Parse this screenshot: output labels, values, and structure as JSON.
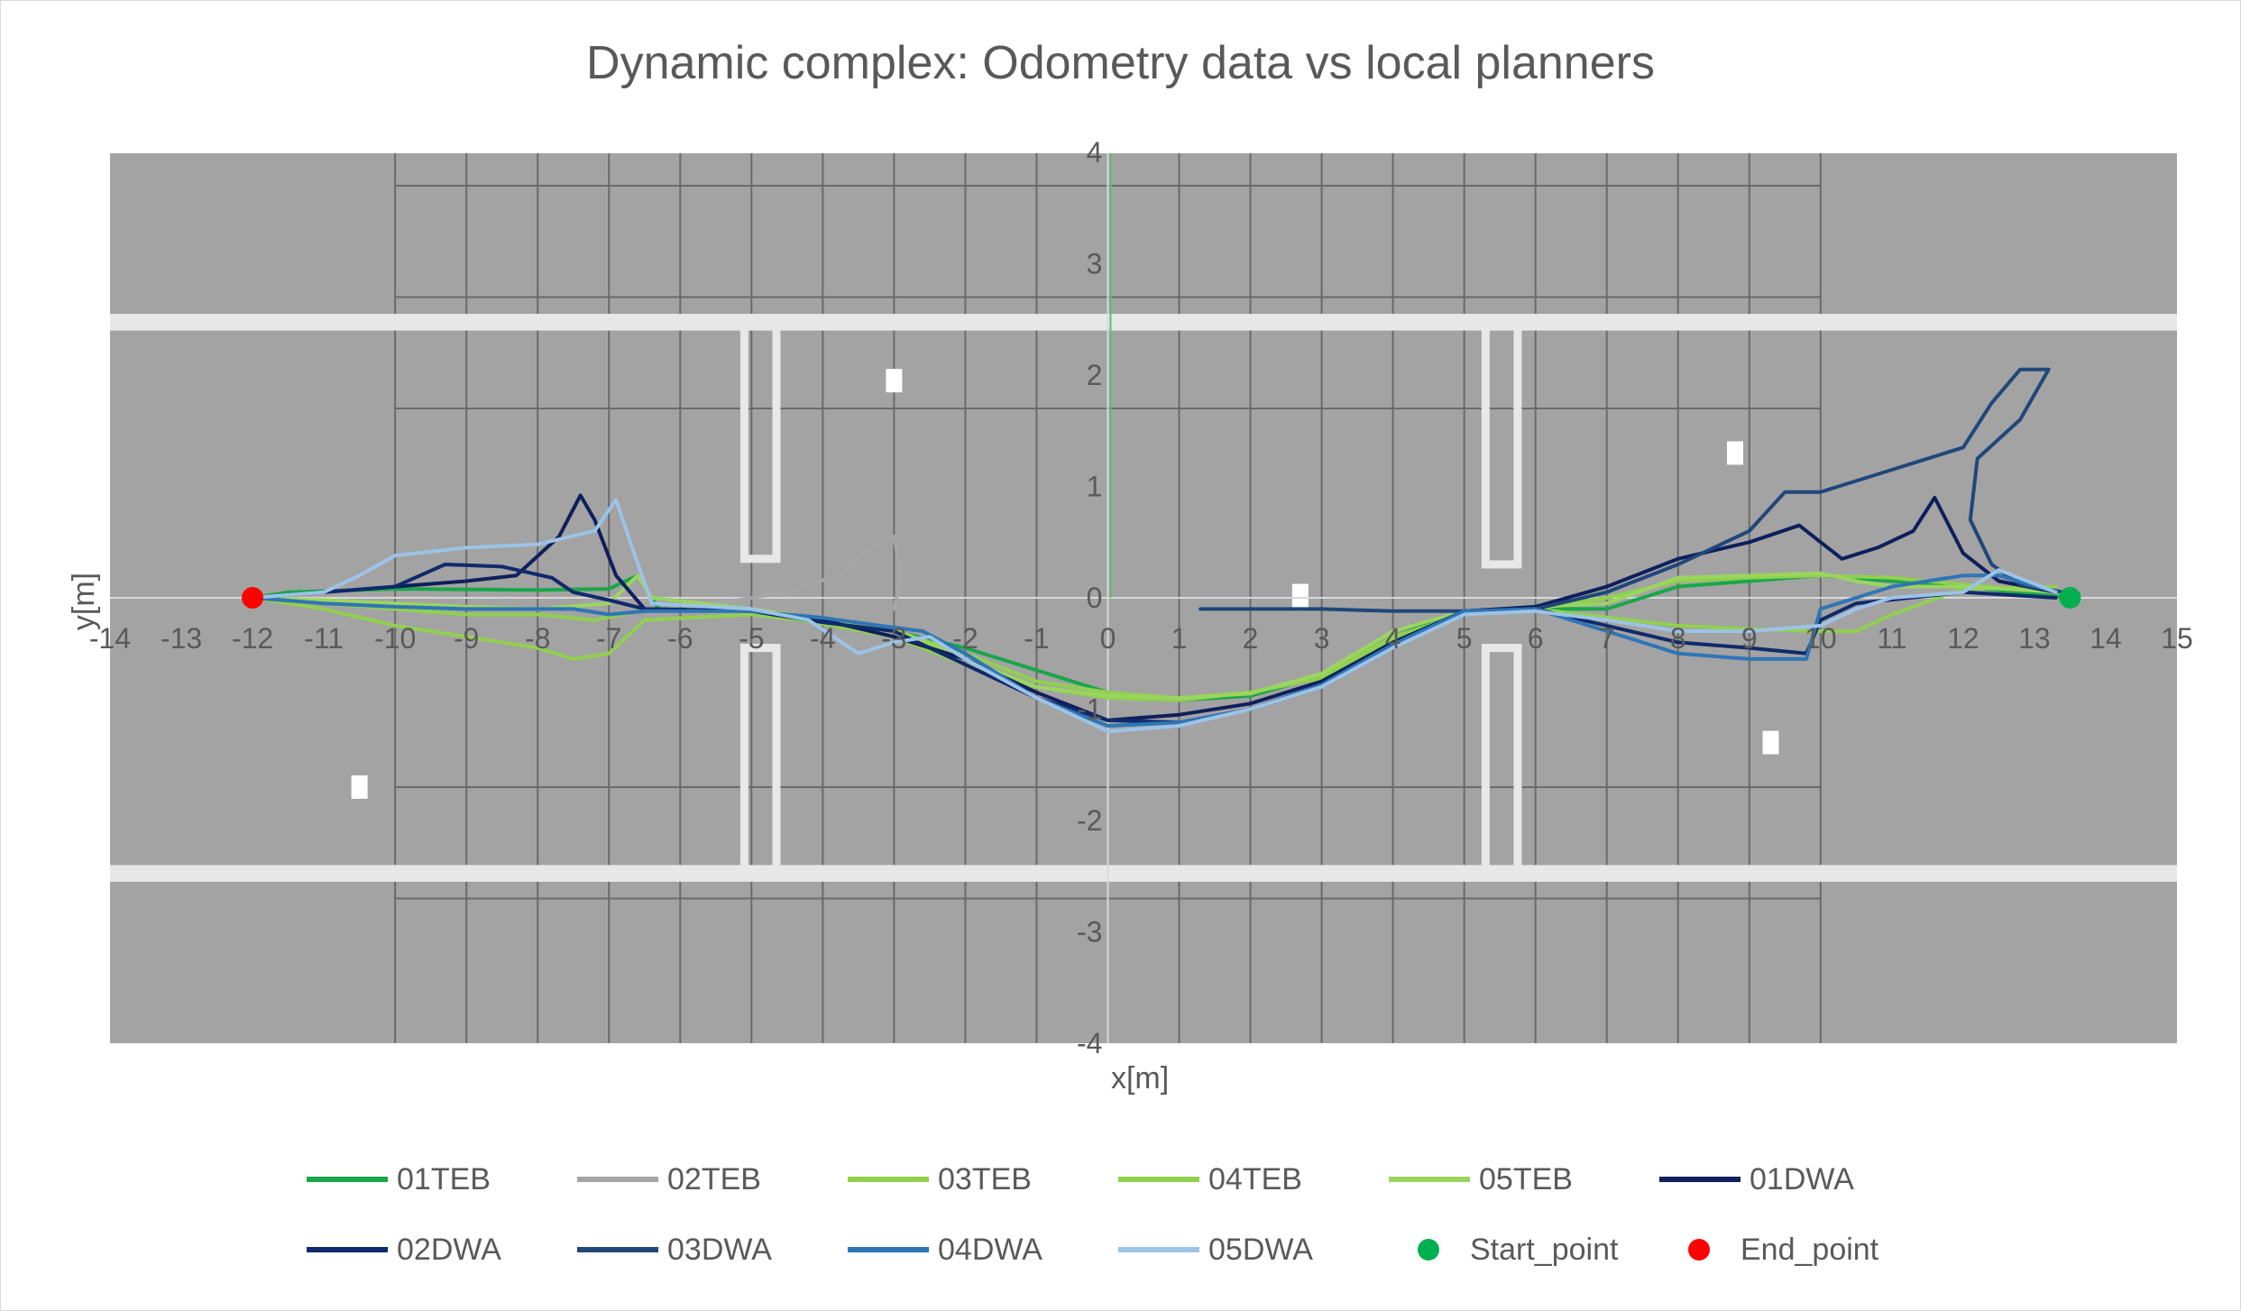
{
  "chart_data": {
    "type": "scatter",
    "title": "Dynamic complex: Odometry data vs local planners",
    "xlabel": "x[m]",
    "ylabel": "y[m]",
    "xlim": [
      -14,
      15
    ],
    "ylim": [
      -4,
      4
    ],
    "x_ticks": [
      "-14",
      "-13",
      "-12",
      "-11",
      "-10",
      "-9",
      "-8",
      "-7",
      "-6",
      "-5",
      "-4",
      "-3",
      "-2",
      "-1",
      "0",
      "1",
      "2",
      "3",
      "4",
      "5",
      "6",
      "7",
      "8",
      "9",
      "10",
      "11",
      "12",
      "13",
      "14",
      "15"
    ],
    "y_ticks": [
      "4",
      "3",
      "2",
      "1",
      "0",
      "-1",
      "-2",
      "-3",
      "-4"
    ],
    "background": "grey occupancy map of corridor with walls and obstacles",
    "legend_position": "bottom",
    "series": [
      {
        "name": "01TEB",
        "color": "#1aa64a",
        "points": [
          [
            -12,
            0
          ],
          [
            -11.5,
            0.05
          ],
          [
            -10,
            0.08
          ],
          [
            -8,
            0.07
          ],
          [
            -7,
            0.08
          ],
          [
            -6.6,
            0.2
          ],
          [
            -6.3,
            -0.1
          ],
          [
            -5,
            -0.12
          ],
          [
            -4,
            -0.18
          ],
          [
            -3,
            -0.3
          ],
          [
            -2,
            -0.45
          ],
          [
            -1,
            -0.65
          ],
          [
            0,
            -0.85
          ],
          [
            1,
            -0.92
          ],
          [
            2,
            -0.88
          ],
          [
            3,
            -0.7
          ],
          [
            4,
            -0.35
          ],
          [
            5,
            -0.12
          ],
          [
            6,
            -0.1
          ],
          [
            7,
            -0.1
          ],
          [
            8,
            0.1
          ],
          [
            9,
            0.15
          ],
          [
            10,
            0.2
          ],
          [
            11,
            0.15
          ],
          [
            12,
            0.1
          ],
          [
            13.5,
            0
          ]
        ]
      },
      {
        "name": "02TEB",
        "color": "#a6a6a6",
        "points": [
          [
            -5.5,
            -0.05
          ],
          [
            -4.5,
            0.05
          ],
          [
            -3.8,
            0.2
          ],
          [
            -3.2,
            0.5
          ],
          [
            -3,
            0.55
          ],
          [
            -2.9,
            0.2
          ],
          [
            -3,
            -0.1
          ]
        ]
      },
      {
        "name": "03TEB",
        "color": "#92d050",
        "points": [
          [
            -12,
            0
          ],
          [
            -11,
            -0.1
          ],
          [
            -10,
            -0.25
          ],
          [
            -9,
            -0.35
          ],
          [
            -8,
            -0.45
          ],
          [
            -7.5,
            -0.55
          ],
          [
            -7,
            -0.5
          ],
          [
            -6.5,
            -0.2
          ],
          [
            -5,
            -0.15
          ],
          [
            -3,
            -0.3
          ],
          [
            -2,
            -0.5
          ],
          [
            -1,
            -0.75
          ],
          [
            0,
            -0.85
          ],
          [
            1,
            -0.9
          ],
          [
            2,
            -0.85
          ],
          [
            3,
            -0.7
          ],
          [
            4,
            -0.35
          ],
          [
            5,
            -0.15
          ],
          [
            6,
            -0.1
          ],
          [
            8,
            -0.25
          ],
          [
            9,
            -0.28
          ],
          [
            10,
            -0.3
          ],
          [
            10.5,
            -0.3
          ],
          [
            11,
            -0.15
          ],
          [
            12,
            0.08
          ],
          [
            13.3,
            0.1
          ]
        ]
      },
      {
        "name": "04TEB",
        "color": "#8fd14f",
        "points": [
          [
            -12,
            0
          ],
          [
            -11,
            -0.05
          ],
          [
            -10,
            -0.1
          ],
          [
            -9,
            -0.15
          ],
          [
            -8,
            -0.15
          ],
          [
            -7.2,
            -0.2
          ],
          [
            -6.8,
            -0.15
          ],
          [
            -6.5,
            -0.1
          ],
          [
            -5,
            -0.12
          ],
          [
            -3,
            -0.35
          ],
          [
            -2,
            -0.6
          ],
          [
            -1,
            -0.8
          ],
          [
            0,
            -0.9
          ],
          [
            1,
            -0.92
          ],
          [
            2,
            -0.85
          ],
          [
            3,
            -0.72
          ],
          [
            4,
            -0.38
          ],
          [
            5,
            -0.15
          ],
          [
            6,
            -0.1
          ],
          [
            7,
            0
          ],
          [
            8,
            0.15
          ],
          [
            9,
            0.18
          ],
          [
            10,
            0.2
          ],
          [
            11,
            0.18
          ],
          [
            12,
            0.12
          ],
          [
            13.3,
            0.05
          ]
        ]
      },
      {
        "name": "05TEB",
        "color": "#9bd55f",
        "points": [
          [
            -12,
            0
          ],
          [
            -11,
            -0.02
          ],
          [
            -10,
            -0.05
          ],
          [
            -9,
            -0.08
          ],
          [
            -8,
            -0.1
          ],
          [
            -7,
            -0.05
          ],
          [
            -6.6,
            0.2
          ],
          [
            -6.4,
            0
          ],
          [
            -5,
            -0.1
          ],
          [
            -3,
            -0.28
          ],
          [
            -2,
            -0.55
          ],
          [
            -1,
            -0.8
          ],
          [
            0,
            -0.88
          ],
          [
            1,
            -0.9
          ],
          [
            2,
            -0.86
          ],
          [
            3,
            -0.68
          ],
          [
            4,
            -0.3
          ],
          [
            5,
            -0.12
          ],
          [
            6,
            -0.08
          ],
          [
            7,
            -0.05
          ],
          [
            8,
            0.18
          ],
          [
            9,
            0.2
          ],
          [
            10,
            0.22
          ],
          [
            10.5,
            0.15
          ],
          [
            11,
            0.1
          ],
          [
            12,
            0.1
          ],
          [
            13.4,
            0.05
          ]
        ]
      },
      {
        "name": "01DWA",
        "color": "#0f1f5c",
        "points": [
          [
            -12,
            0
          ],
          [
            -11,
            0.05
          ],
          [
            -10,
            0.1
          ],
          [
            -9,
            0.15
          ],
          [
            -8.3,
            0.2
          ],
          [
            -7.7,
            0.55
          ],
          [
            -7.4,
            0.92
          ],
          [
            -7.2,
            0.7
          ],
          [
            -6.9,
            0.2
          ],
          [
            -6.5,
            -0.1
          ],
          [
            -5,
            -0.12
          ],
          [
            -4,
            -0.2
          ],
          [
            -3,
            -0.35
          ],
          [
            -2,
            -0.55
          ],
          [
            -1,
            -0.85
          ],
          [
            0,
            -1.1
          ],
          [
            1,
            -1.05
          ],
          [
            2,
            -0.95
          ],
          [
            3,
            -0.75
          ],
          [
            4,
            -0.4
          ],
          [
            5,
            -0.12
          ],
          [
            6,
            -0.08
          ],
          [
            7,
            0.1
          ],
          [
            8,
            0.35
          ],
          [
            9,
            0.5
          ],
          [
            9.7,
            0.65
          ],
          [
            10.3,
            0.35
          ],
          [
            10.8,
            0.45
          ],
          [
            11.3,
            0.6
          ],
          [
            11.6,
            0.9
          ],
          [
            12,
            0.4
          ],
          [
            12.5,
            0.15
          ],
          [
            13.3,
            0.05
          ]
        ]
      },
      {
        "name": "02DWA",
        "color": "#102a6b",
        "points": [
          [
            -12,
            0
          ],
          [
            -11,
            0.05
          ],
          [
            -10,
            0.1
          ],
          [
            -9.3,
            0.3
          ],
          [
            -8.5,
            0.28
          ],
          [
            -7.8,
            0.18
          ],
          [
            -7.5,
            0.05
          ],
          [
            -7,
            -0.02
          ],
          [
            -6.5,
            -0.1
          ],
          [
            -5,
            -0.12
          ],
          [
            -4,
            -0.22
          ],
          [
            -3,
            -0.3
          ],
          [
            -2,
            -0.6
          ],
          [
            -1,
            -0.9
          ],
          [
            0,
            -1.1
          ],
          [
            1,
            -1.12
          ],
          [
            2,
            -1
          ],
          [
            3,
            -0.8
          ],
          [
            4,
            -0.45
          ],
          [
            5,
            -0.12
          ],
          [
            6,
            -0.1
          ],
          [
            7,
            -0.25
          ],
          [
            8,
            -0.4
          ],
          [
            9,
            -0.45
          ],
          [
            9.8,
            -0.5
          ],
          [
            10,
            -0.2
          ],
          [
            10.5,
            -0.05
          ],
          [
            12,
            0.05
          ],
          [
            13.3,
            0
          ]
        ]
      },
      {
        "name": "03DWA",
        "color": "#20477a",
        "points": [
          [
            1.3,
            -0.1
          ],
          [
            2,
            -0.1
          ],
          [
            3,
            -0.1
          ],
          [
            4,
            -0.12
          ],
          [
            5,
            -0.12
          ],
          [
            6,
            -0.1
          ],
          [
            7,
            0.05
          ],
          [
            8,
            0.3
          ],
          [
            9,
            0.6
          ],
          [
            9.5,
            0.95
          ],
          [
            10,
            0.95
          ],
          [
            11,
            1.15
          ],
          [
            12,
            1.35
          ],
          [
            12.4,
            1.75
          ],
          [
            12.8,
            2.05
          ],
          [
            13.2,
            2.05
          ],
          [
            12.8,
            1.6
          ],
          [
            12.2,
            1.25
          ],
          [
            12.1,
            0.7
          ],
          [
            12.4,
            0.3
          ],
          [
            12.8,
            0.12
          ],
          [
            13.4,
            0.05
          ]
        ]
      },
      {
        "name": "04DWA",
        "color": "#2e75b6",
        "points": [
          [
            -12,
            0
          ],
          [
            -11,
            -0.05
          ],
          [
            -10,
            -0.08
          ],
          [
            -9,
            -0.1
          ],
          [
            -8,
            -0.1
          ],
          [
            -7.5,
            -0.1
          ],
          [
            -7,
            -0.15
          ],
          [
            -6.5,
            -0.12
          ],
          [
            -5,
            -0.12
          ],
          [
            -4,
            -0.18
          ],
          [
            -3.2,
            -0.25
          ],
          [
            -2.6,
            -0.3
          ],
          [
            -2,
            -0.5
          ],
          [
            -1,
            -0.9
          ],
          [
            0,
            -1.15
          ],
          [
            1,
            -1.12
          ],
          [
            2,
            -1
          ],
          [
            3,
            -0.78
          ],
          [
            4,
            -0.42
          ],
          [
            5,
            -0.12
          ],
          [
            6,
            -0.1
          ],
          [
            7,
            -0.3
          ],
          [
            8,
            -0.5
          ],
          [
            9,
            -0.55
          ],
          [
            9.8,
            -0.55
          ],
          [
            10,
            -0.1
          ],
          [
            11,
            0.1
          ],
          [
            12,
            0.2
          ],
          [
            12.5,
            0.2
          ],
          [
            13.3,
            0.05
          ]
        ]
      },
      {
        "name": "05DWA",
        "color": "#9dc3e6",
        "points": [
          [
            -12,
            0
          ],
          [
            -11,
            0.05
          ],
          [
            -10.5,
            0.2
          ],
          [
            -10,
            0.38
          ],
          [
            -9,
            0.45
          ],
          [
            -8,
            0.48
          ],
          [
            -7.2,
            0.6
          ],
          [
            -6.9,
            0.88
          ],
          [
            -6.7,
            0.5
          ],
          [
            -6.4,
            -0.05
          ],
          [
            -5,
            -0.1
          ],
          [
            -4.2,
            -0.2
          ],
          [
            -3.5,
            -0.5
          ],
          [
            -3,
            -0.4
          ],
          [
            -2.5,
            -0.35
          ],
          [
            -2,
            -0.55
          ],
          [
            -1,
            -0.9
          ],
          [
            0,
            -1.2
          ],
          [
            1,
            -1.15
          ],
          [
            2,
            -1
          ],
          [
            3,
            -0.8
          ],
          [
            4,
            -0.45
          ],
          [
            5,
            -0.15
          ],
          [
            6,
            -0.12
          ],
          [
            7,
            -0.2
          ],
          [
            8,
            -0.3
          ],
          [
            9,
            -0.3
          ],
          [
            10,
            -0.25
          ],
          [
            10.5,
            -0.1
          ],
          [
            11,
            0
          ],
          [
            12,
            0.05
          ],
          [
            12.5,
            0.25
          ],
          [
            13.3,
            0.05
          ]
        ]
      }
    ],
    "markers": [
      {
        "name": "Start_point",
        "color": "#00b050",
        "x": 13.5,
        "y": 0
      },
      {
        "name": "End_point",
        "color": "#ff0000",
        "x": -12,
        "y": 0
      }
    ]
  }
}
